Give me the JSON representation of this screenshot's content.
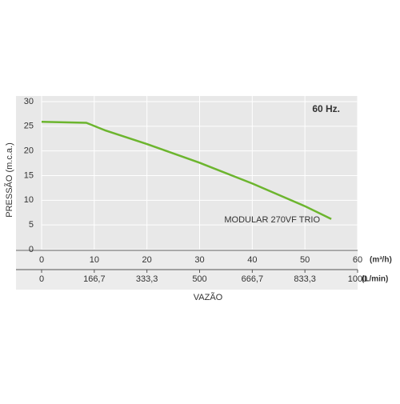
{
  "chart_data": {
    "type": "line",
    "annotation": "60 Hz.",
    "ylabel": "PRESSÃO (m.c.a.)",
    "xlabel": "VAZÃO",
    "xunit": "(m³/h)",
    "x2unit": "(L/min)",
    "x": [
      0,
      8.5,
      12,
      20,
      30,
      40,
      50,
      55
    ],
    "series": [
      {
        "name": "MODULAR 270VF TRIO",
        "color": "#6cb52e",
        "values": [
          25.9,
          25.7,
          24.2,
          21.4,
          17.6,
          13.4,
          8.8,
          6.2
        ]
      }
    ],
    "xlim": [
      0,
      60
    ],
    "xticks": [
      0,
      10,
      20,
      30,
      40,
      50,
      60
    ],
    "x2lim": [
      0,
      1000
    ],
    "x2ticks": [
      0,
      {
        "value": 166.7,
        "label": "166,7"
      },
      {
        "value": 333.3,
        "label": "333,3"
      },
      500,
      {
        "value": 666.7,
        "label": "666,7"
      },
      {
        "value": 833.3,
        "label": "833,3"
      },
      1000
    ],
    "ylim": [
      0,
      30
    ],
    "yticks": [
      0,
      5,
      10,
      15,
      20,
      25,
      30
    ],
    "grid": true
  }
}
